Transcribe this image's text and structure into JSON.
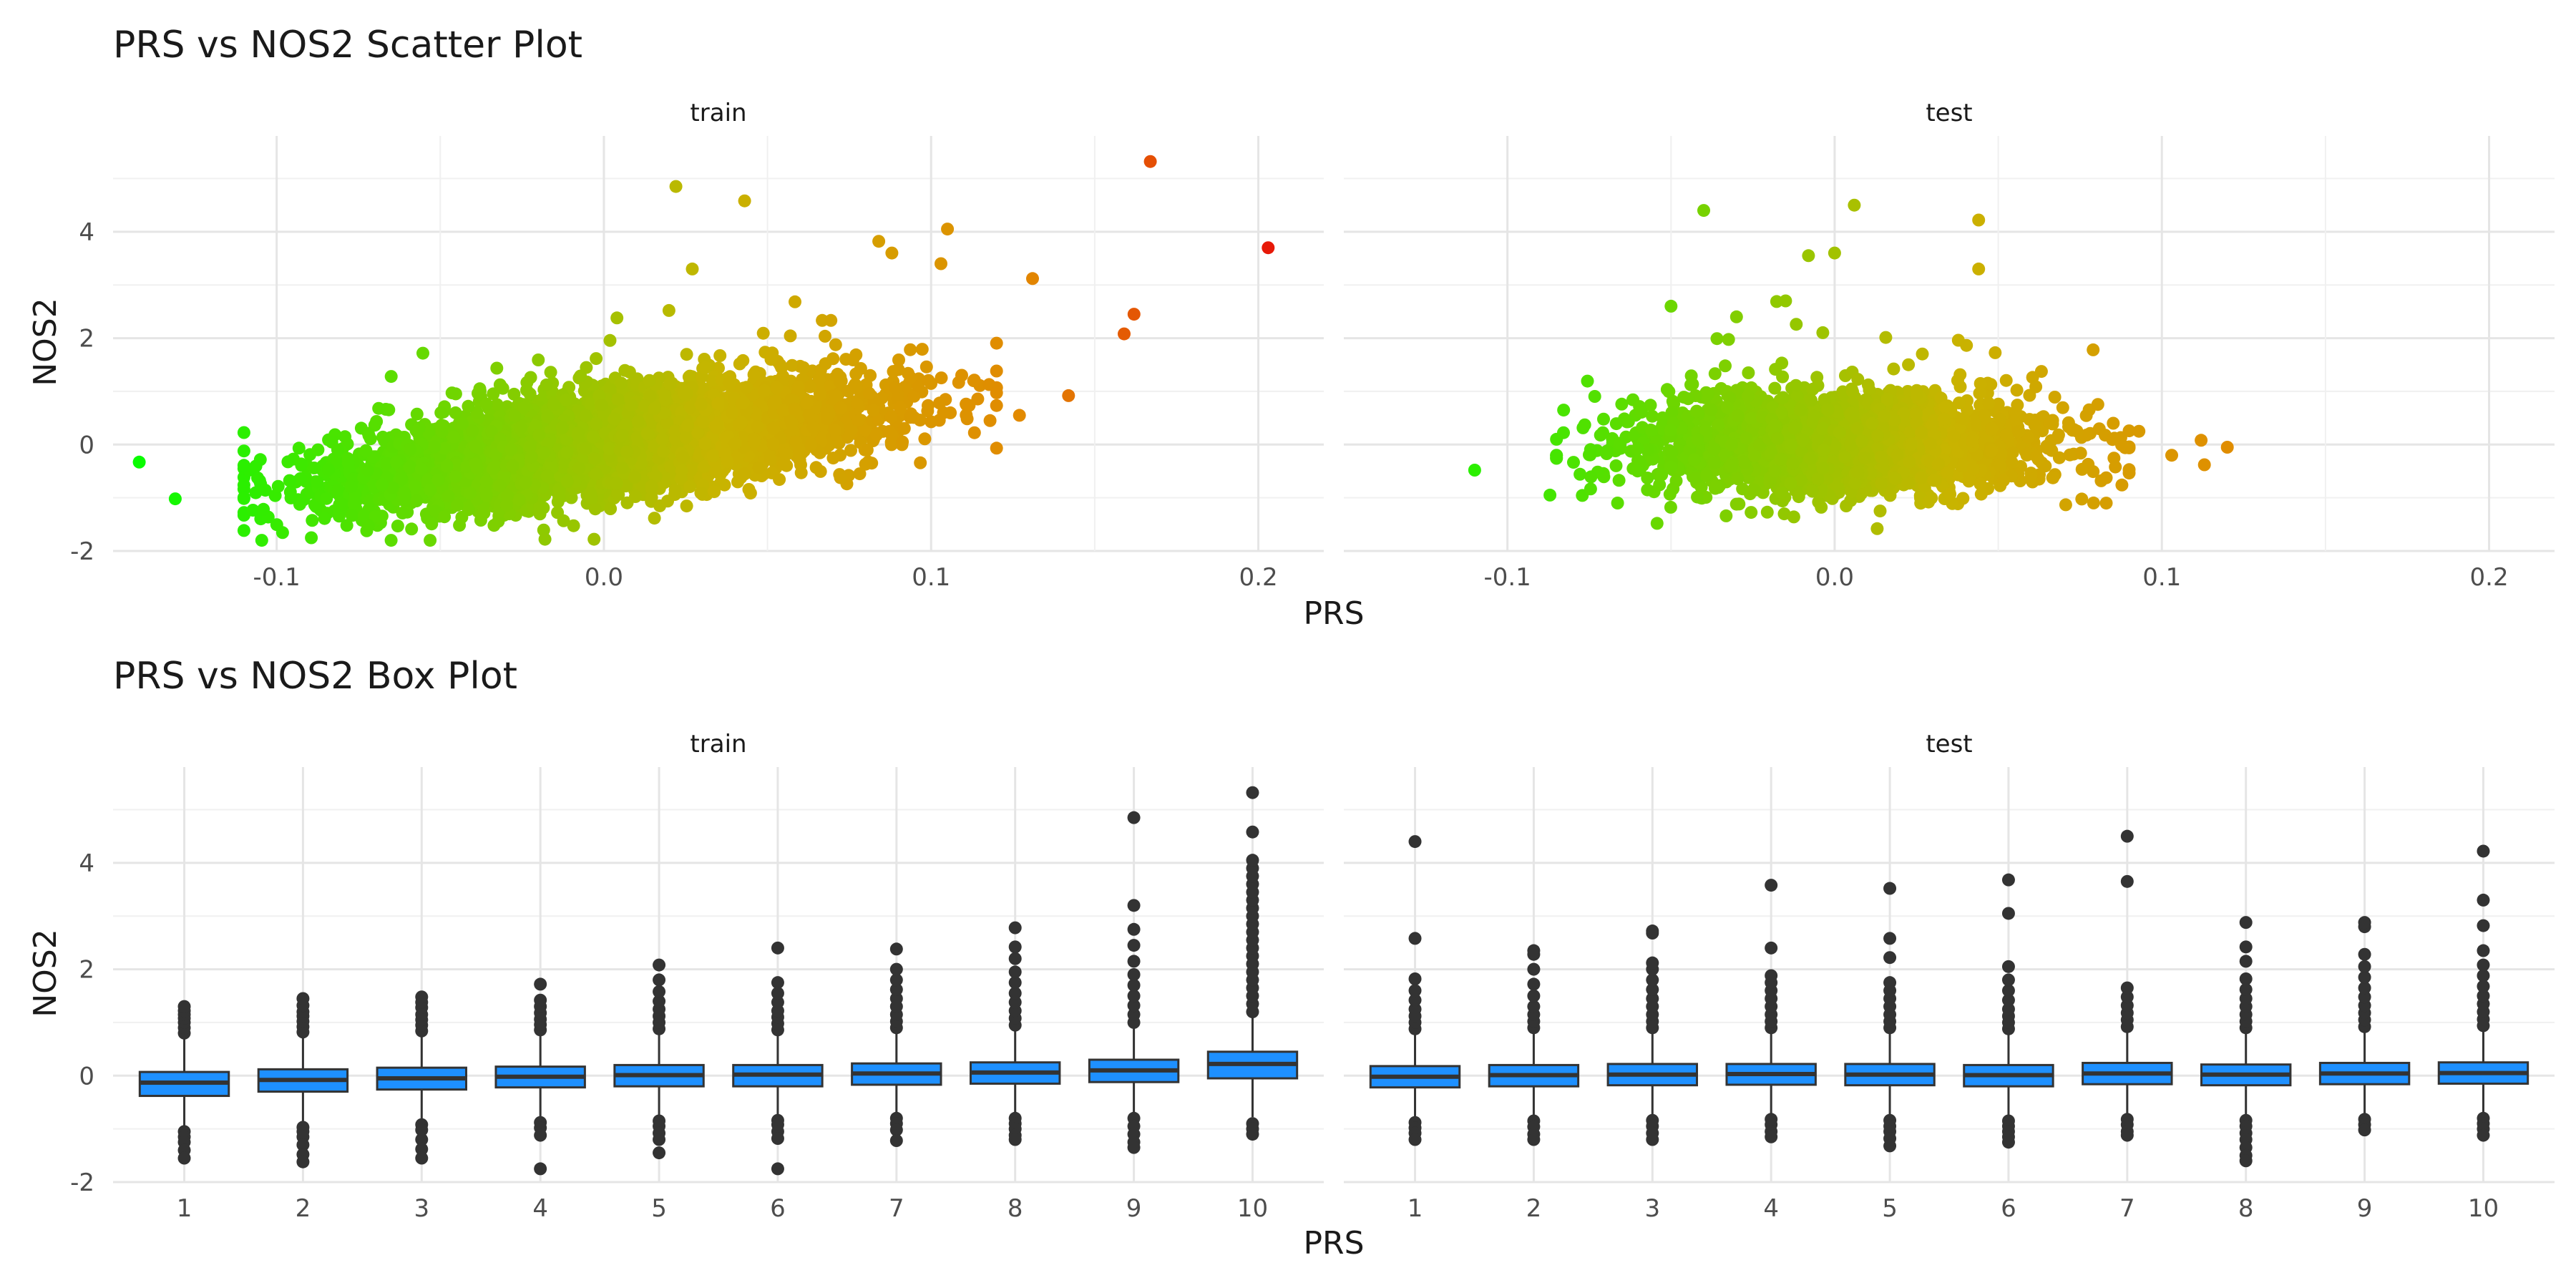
{
  "chart_data": [
    {
      "type": "scatter",
      "title": "PRS vs NOS2 Scatter Plot",
      "xlabel": "PRS",
      "ylabel": "NOS2",
      "xlim": [
        -0.15,
        0.22
      ],
      "ylim": [
        -2.0,
        5.8
      ],
      "x_ticks": [
        -0.1,
        0.0,
        0.1,
        0.2
      ],
      "x_tick_labels": [
        "-0.1",
        "0.0",
        "0.1",
        "0.2"
      ],
      "y_ticks": [
        -2,
        0,
        2,
        4
      ],
      "y_tick_labels": [
        "-2",
        "0",
        "2",
        "4"
      ],
      "grid": true,
      "legend": "none",
      "color_encoding": {
        "variable": "PRS",
        "low": "#00ff00",
        "mid": "#c8b400",
        "high": "#e8000a"
      },
      "facets": [
        {
          "label": "train",
          "approx_points": 5200,
          "cloud": {
            "x_mean": 0.0,
            "x_sd": 0.038,
            "x_min": -0.11,
            "x_max": 0.12,
            "slope": 8.0,
            "y_sd": 0.45,
            "y_min": -1.8
          },
          "points": [
            {
              "x": -0.142,
              "y": -0.33
            },
            {
              "x": -0.131,
              "y": -1.02
            },
            {
              "x": -0.11,
              "y": -0.12
            },
            {
              "x": -0.072,
              "y": -1.52
            },
            {
              "x": -0.065,
              "y": 1.28
            },
            {
              "x": -0.018,
              "y": -1.78
            },
            {
              "x": -0.003,
              "y": -1.78
            },
            {
              "x": 0.004,
              "y": 2.38
            },
            {
              "x": 0.022,
              "y": 4.85
            },
            {
              "x": 0.043,
              "y": 4.58
            },
            {
              "x": 0.084,
              "y": 3.82
            },
            {
              "x": 0.088,
              "y": 3.6
            },
            {
              "x": 0.105,
              "y": 4.05
            },
            {
              "x": 0.103,
              "y": 3.4
            },
            {
              "x": 0.131,
              "y": 3.12
            },
            {
              "x": 0.113,
              "y": 1.2
            },
            {
              "x": 0.118,
              "y": 0.45
            },
            {
              "x": 0.127,
              "y": 0.55
            },
            {
              "x": 0.142,
              "y": 0.92
            },
            {
              "x": 0.159,
              "y": 2.08
            },
            {
              "x": 0.162,
              "y": 2.45
            },
            {
              "x": 0.167,
              "y": 5.32
            },
            {
              "x": 0.203,
              "y": 3.7
            }
          ]
        },
        {
          "label": "test",
          "approx_points": 2600,
          "cloud": {
            "x_mean": 0.0,
            "x_sd": 0.03,
            "x_min": -0.085,
            "x_max": 0.09,
            "slope": 0.5,
            "y_sd": 0.45,
            "y_min": -1.6
          },
          "points": [
            {
              "x": -0.11,
              "y": -0.48
            },
            {
              "x": -0.087,
              "y": -0.95
            },
            {
              "x": -0.05,
              "y": 2.6
            },
            {
              "x": -0.04,
              "y": 4.4
            },
            {
              "x": -0.03,
              "y": 2.4
            },
            {
              "x": -0.015,
              "y": 2.7
            },
            {
              "x": -0.008,
              "y": 3.55
            },
            {
              "x": 0.0,
              "y": 3.6
            },
            {
              "x": 0.006,
              "y": 4.5
            },
            {
              "x": 0.044,
              "y": 4.22
            },
            {
              "x": 0.044,
              "y": 3.3
            },
            {
              "x": 0.013,
              "y": -1.58
            },
            {
              "x": 0.083,
              "y": -1.1
            },
            {
              "x": 0.079,
              "y": 1.78
            },
            {
              "x": 0.093,
              "y": 0.25
            },
            {
              "x": 0.103,
              "y": -0.2
            },
            {
              "x": 0.113,
              "y": -0.38
            },
            {
              "x": 0.112,
              "y": 0.08
            },
            {
              "x": 0.12,
              "y": -0.05
            }
          ]
        }
      ]
    },
    {
      "type": "box",
      "title": "PRS vs NOS2 Box Plot",
      "xlabel": "PRS",
      "ylabel": "NOS2",
      "categories": [
        "1",
        "2",
        "3",
        "4",
        "5",
        "6",
        "7",
        "8",
        "9",
        "10"
      ],
      "ylim": [
        -2.0,
        5.8
      ],
      "y_ticks": [
        -2,
        0,
        2,
        4
      ],
      "y_tick_labels": [
        "-2",
        "0",
        "2",
        "4"
      ],
      "grid": true,
      "legend": "none",
      "box_color": "#1e90ff",
      "facets": [
        {
          "label": "train",
          "boxes": [
            {
              "q1": -0.38,
              "median": -0.13,
              "q3": 0.07,
              "whisker_low": -1.0,
              "whisker_high": 0.72,
              "outliers_high": [
                0.8,
                0.9,
                1.0,
                1.08,
                1.15,
                1.22,
                1.3
              ],
              "outliers_low": [
                -1.05,
                -1.15,
                -1.25,
                -1.4,
                -1.55
              ]
            },
            {
              "q1": -0.3,
              "median": -0.08,
              "q3": 0.12,
              "whisker_low": -0.93,
              "whisker_high": 0.76,
              "outliers_high": [
                0.82,
                0.92,
                1.02,
                1.12,
                1.2,
                1.32,
                1.45
              ],
              "outliers_low": [
                -0.97,
                -1.05,
                -1.15,
                -1.3,
                -1.48,
                -1.62
              ]
            },
            {
              "q1": -0.26,
              "median": -0.05,
              "q3": 0.15,
              "whisker_low": -0.86,
              "whisker_high": 0.76,
              "outliers_high": [
                0.84,
                0.95,
                1.05,
                1.15,
                1.28,
                1.38,
                1.48
              ],
              "outliers_low": [
                -0.92,
                -1.02,
                -1.2,
                -1.38,
                -1.55
              ]
            },
            {
              "q1": -0.22,
              "median": -0.02,
              "q3": 0.17,
              "whisker_low": -0.82,
              "whisker_high": 0.78,
              "outliers_high": [
                0.86,
                0.96,
                1.06,
                1.18,
                1.3,
                1.42,
                1.72
              ],
              "outliers_low": [
                -0.88,
                -0.98,
                -1.12,
                -1.75
              ]
            },
            {
              "q1": -0.2,
              "median": 0.01,
              "q3": 0.2,
              "whisker_low": -0.78,
              "whisker_high": 0.8,
              "outliers_high": [
                0.88,
                1.0,
                1.12,
                1.25,
                1.4,
                1.58,
                1.8,
                2.08
              ],
              "outliers_low": [
                -0.85,
                -0.95,
                -1.08,
                -1.2,
                -1.45
              ]
            },
            {
              "q1": -0.2,
              "median": 0.02,
              "q3": 0.2,
              "whisker_low": -0.76,
              "whisker_high": 0.8,
              "outliers_high": [
                0.86,
                0.98,
                1.1,
                1.22,
                1.38,
                1.55,
                1.75,
                2.4
              ],
              "outliers_low": [
                -0.84,
                -0.92,
                -1.05,
                -1.18,
                -1.75
              ]
            },
            {
              "q1": -0.17,
              "median": 0.04,
              "q3": 0.23,
              "whisker_low": -0.74,
              "whisker_high": 0.84,
              "outliers_high": [
                0.9,
                1.02,
                1.15,
                1.3,
                1.45,
                1.62,
                1.8,
                2.0,
                2.38
              ],
              "outliers_low": [
                -0.8,
                -0.9,
                -1.02,
                -1.22
              ]
            },
            {
              "q1": -0.15,
              "median": 0.06,
              "q3": 0.25,
              "whisker_low": -0.72,
              "whisker_high": 0.87,
              "outliers_high": [
                0.95,
                1.08,
                1.22,
                1.38,
                1.55,
                1.75,
                1.95,
                2.2,
                2.42,
                2.78
              ],
              "outliers_low": [
                -0.8,
                -0.9,
                -1.0,
                -1.12,
                -1.2
              ]
            },
            {
              "q1": -0.12,
              "median": 0.1,
              "q3": 0.3,
              "whisker_low": -0.72,
              "whisker_high": 0.92,
              "outliers_high": [
                1.0,
                1.15,
                1.32,
                1.5,
                1.7,
                1.9,
                2.15,
                2.45,
                2.75,
                3.2,
                4.85
              ],
              "outliers_low": [
                -0.8,
                -0.95,
                -1.1,
                -1.25,
                -1.35
              ]
            },
            {
              "q1": -0.05,
              "median": 0.22,
              "q3": 0.45,
              "whisker_low": -0.78,
              "whisker_high": 1.12,
              "outliers_high": [
                1.2,
                1.35,
                1.5,
                1.65,
                1.8,
                1.95,
                2.1,
                2.25,
                2.4,
                2.55,
                2.7,
                2.85,
                3.0,
                3.15,
                3.3,
                3.45,
                3.6,
                3.75,
                3.9,
                4.05,
                4.58,
                5.32
              ],
              "outliers_low": [
                -0.9,
                -1.0,
                -1.1
              ]
            }
          ]
        },
        {
          "label": "test",
          "boxes": [
            {
              "q1": -0.22,
              "median": -0.02,
              "q3": 0.18,
              "whisker_low": -0.8,
              "whisker_high": 0.8,
              "outliers_high": [
                0.88,
                1.0,
                1.12,
                1.25,
                1.42,
                1.6,
                1.82,
                2.58,
                4.4
              ],
              "outliers_low": [
                -0.88,
                -0.98,
                -1.08,
                -1.2
              ]
            },
            {
              "q1": -0.2,
              "median": 0.01,
              "q3": 0.2,
              "whisker_low": -0.78,
              "whisker_high": 0.8,
              "outliers_high": [
                0.9,
                1.02,
                1.15,
                1.3,
                1.5,
                1.72,
                2.0,
                2.28,
                2.35
              ],
              "outliers_low": [
                -0.85,
                -0.96,
                -1.1,
                -1.2
              ]
            },
            {
              "q1": -0.18,
              "median": 0.02,
              "q3": 0.22,
              "whisker_low": -0.76,
              "whisker_high": 0.82,
              "outliers_high": [
                0.9,
                1.02,
                1.15,
                1.3,
                1.45,
                1.62,
                1.8,
                2.0,
                2.12,
                2.68,
                2.72
              ],
              "outliers_low": [
                -0.84,
                -0.95,
                -1.08,
                -1.2
              ]
            },
            {
              "q1": -0.17,
              "median": 0.03,
              "q3": 0.22,
              "whisker_low": -0.75,
              "whisker_high": 0.82,
              "outliers_high": [
                0.9,
                1.02,
                1.15,
                1.3,
                1.45,
                1.6,
                1.75,
                1.88,
                2.4,
                3.58
              ],
              "outliers_low": [
                -0.82,
                -0.92,
                -1.05,
                -1.15
              ]
            },
            {
              "q1": -0.18,
              "median": 0.02,
              "q3": 0.22,
              "whisker_low": -0.76,
              "whisker_high": 0.82,
              "outliers_high": [
                0.9,
                1.02,
                1.15,
                1.3,
                1.45,
                1.6,
                1.75,
                2.22,
                2.58,
                3.52
              ],
              "outliers_low": [
                -0.84,
                -0.95,
                -1.05,
                -1.18,
                -1.32
              ]
            },
            {
              "q1": -0.2,
              "median": 0.01,
              "q3": 0.2,
              "whisker_low": -0.78,
              "whisker_high": 0.8,
              "outliers_high": [
                0.88,
                1.0,
                1.12,
                1.25,
                1.42,
                1.6,
                1.8,
                2.05,
                3.05,
                3.68
              ],
              "outliers_low": [
                -0.85,
                -0.95,
                -1.05,
                -1.15,
                -1.25
              ]
            },
            {
              "q1": -0.16,
              "median": 0.04,
              "q3": 0.24,
              "whisker_low": -0.74,
              "whisker_high": 0.84,
              "outliers_high": [
                0.92,
                1.05,
                1.18,
                1.32,
                1.48,
                1.65,
                3.65,
                4.5
              ],
              "outliers_low": [
                -0.82,
                -0.92,
                -1.05,
                -1.12
              ]
            },
            {
              "q1": -0.18,
              "median": 0.02,
              "q3": 0.21,
              "whisker_low": -0.76,
              "whisker_high": 0.82,
              "outliers_high": [
                0.9,
                1.02,
                1.15,
                1.3,
                1.45,
                1.62,
                1.82,
                2.15,
                2.42,
                2.88
              ],
              "outliers_low": [
                -0.84,
                -0.95,
                -1.08,
                -1.2,
                -1.35,
                -1.5,
                -1.6
              ]
            },
            {
              "q1": -0.16,
              "median": 0.04,
              "q3": 0.24,
              "whisker_low": -0.74,
              "whisker_high": 0.84,
              "outliers_high": [
                0.92,
                1.05,
                1.18,
                1.32,
                1.48,
                1.65,
                1.85,
                2.05,
                2.28,
                2.8,
                2.88
              ],
              "outliers_low": [
                -0.82,
                -0.92,
                -1.02
              ]
            },
            {
              "q1": -0.15,
              "median": 0.05,
              "q3": 0.25,
              "whisker_low": -0.72,
              "whisker_high": 0.86,
              "outliers_high": [
                0.94,
                1.06,
                1.2,
                1.35,
                1.5,
                1.68,
                1.88,
                2.08,
                2.35,
                2.82,
                3.3,
                4.22
              ],
              "outliers_low": [
                -0.8,
                -0.9,
                -1.0,
                -1.12
              ]
            }
          ]
        }
      ]
    }
  ]
}
